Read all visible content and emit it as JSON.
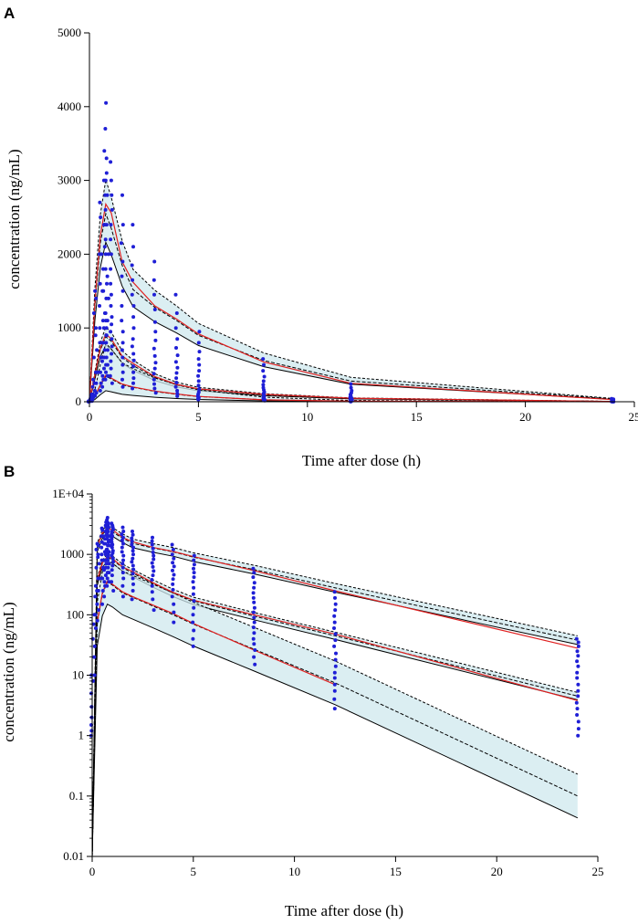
{
  "chart_data": [
    {
      "panel_label": "A",
      "type": "scatter",
      "scale": "linear",
      "xlabel": "Time after dose (h)",
      "ylabel": "concentration (ng/mL)",
      "xlim": [
        0,
        25
      ],
      "ylim": [
        0,
        5000
      ],
      "x_ticks": [
        0,
        5,
        10,
        15,
        20,
        25
      ],
      "x_tick_labels": [
        "0",
        "5",
        "10",
        "15",
        "20",
        "25"
      ],
      "y_ticks": [
        0,
        1000,
        2000,
        3000,
        4000,
        5000
      ],
      "y_tick_labels": [
        "0",
        "1000",
        "2000",
        "3000",
        "4000",
        "5000"
      ],
      "colors": {
        "points": "#1f1fd6",
        "observed_lines": "#e02020",
        "predicted_lines": "#000000",
        "band": "#cfe8ee"
      }
    },
    {
      "panel_label": "B",
      "type": "scatter",
      "scale": "log",
      "xlabel": "Time after dose (h)",
      "ylabel": "concentration (ng/mL)",
      "xlim": [
        0,
        25
      ],
      "ylim": [
        0.01,
        10000
      ],
      "x_ticks": [
        0,
        5,
        10,
        15,
        20,
        25
      ],
      "x_tick_labels": [
        "0",
        "5",
        "10",
        "15",
        "20",
        "25"
      ],
      "y_ticks": [
        0.01,
        0.1,
        1,
        10,
        100,
        1000,
        10000
      ],
      "y_tick_labels": [
        "0.01",
        "0.1",
        "1",
        "10",
        "100",
        "1000",
        "1E+04"
      ],
      "colors": {
        "points": "#1f1fd6",
        "observed_lines": "#e02020",
        "predicted_lines": "#000000",
        "band": "#cfe8ee"
      }
    }
  ],
  "model": {
    "times": [
      0,
      0.25,
      0.5,
      0.75,
      1,
      1.5,
      2,
      3,
      4,
      5,
      8,
      12,
      24
    ],
    "percentiles": [
      {
        "name": "95th",
        "pred": [
          0,
          1300,
          2150,
          2550,
          2350,
          1850,
          1520,
          1280,
          1100,
          900,
          560,
          280,
          38
        ],
        "band_factor": 1.18,
        "obs": [
          0,
          1350,
          2250,
          2680,
          2560,
          1900,
          1620,
          1300,
          1120,
          920,
          540,
          250,
          28
        ]
      },
      {
        "name": "50th",
        "pred": [
          0,
          350,
          700,
          880,
          820,
          600,
          490,
          330,
          230,
          170,
          95,
          45,
          4.5
        ],
        "band_factor": 1.15,
        "obs": [
          0,
          370,
          720,
          920,
          850,
          620,
          520,
          340,
          235,
          175,
          100,
          48,
          3.8
        ]
      },
      {
        "name": "5th",
        "pred": [
          0,
          70,
          220,
          345,
          310,
          230,
          195,
          140,
          100,
          70,
          27,
          7.5,
          0.1
        ],
        "band_factor": 2.3,
        "obs": [
          0,
          75,
          230,
          360,
          320,
          240,
          200,
          145,
          105,
          72,
          26,
          7.0,
          0.0
        ]
      }
    ]
  },
  "observations": [
    {
      "time": 0,
      "values": [
        1,
        1.2,
        1.5,
        2,
        3,
        5,
        8,
        10
      ]
    },
    {
      "time": 0.08,
      "values": [
        10,
        20,
        40,
        70,
        100
      ]
    },
    {
      "time": 0.17,
      "values": [
        30,
        60,
        100,
        200,
        300
      ]
    },
    {
      "time": 0.25,
      "values": [
        80,
        150,
        250,
        400,
        600,
        900,
        1200,
        1500
      ]
    },
    {
      "time": 0.33,
      "values": [
        120,
        250,
        400,
        700,
        1000,
        1400
      ]
    },
    {
      "time": 0.5,
      "values": [
        150,
        250,
        400,
        600,
        800,
        1000,
        1300,
        1600,
        2000,
        2500,
        2700
      ]
    },
    {
      "time": 0.58,
      "values": [
        200,
        350,
        550,
        800,
        1100,
        1500,
        2000
      ]
    },
    {
      "time": 0.67,
      "values": [
        300,
        450,
        600,
        800,
        1000,
        1200,
        1500,
        1800,
        2100,
        2400,
        3000,
        3400
      ]
    },
    {
      "time": 0.75,
      "values": [
        300,
        400,
        500,
        600,
        700,
        800,
        900,
        1000,
        1100,
        1200,
        1400,
        1600,
        1800,
        2000,
        2200,
        2400,
        2600,
        2800,
        3000,
        3300,
        3700,
        4050
      ]
    },
    {
      "time": 0.83,
      "values": [
        350,
        500,
        700,
        900,
        1100,
        1400,
        1700,
        2000,
        2400,
        2800,
        3100
      ]
    },
    {
      "time": 1,
      "values": [
        250,
        350,
        450,
        550,
        650,
        750,
        850,
        950,
        1050,
        1150,
        1300,
        1450,
        1600,
        1800,
        2000,
        2200,
        2400,
        2600,
        2800,
        3000,
        3250
      ]
    },
    {
      "time": 1.5,
      "values": [
        200,
        300,
        400,
        500,
        600,
        700,
        800,
        950,
        1100,
        1300,
        1500,
        1700,
        1900,
        2150,
        2400,
        2800
      ]
    },
    {
      "time": 2,
      "values": [
        180,
        250,
        320,
        400,
        480,
        560,
        650,
        750,
        850,
        1000,
        1150,
        1300,
        1450,
        1650,
        1850,
        2100,
        2400
      ]
    },
    {
      "time": 3,
      "values": [
        120,
        180,
        240,
        300,
        380,
        450,
        530,
        620,
        720,
        830,
        950,
        1080,
        1250,
        1450,
        1650,
        1900
      ]
    },
    {
      "time": 4,
      "values": [
        75,
        110,
        150,
        200,
        260,
        320,
        390,
        460,
        540,
        630,
        730,
        850,
        1000,
        1200,
        1450
      ]
    },
    {
      "time": 5,
      "values": [
        30,
        40,
        55,
        75,
        100,
        130,
        170,
        220,
        280,
        350,
        420,
        500,
        580,
        680,
        800,
        950
      ]
    },
    {
      "time": 8,
      "values": [
        15,
        20,
        26,
        33,
        40,
        50,
        62,
        75,
        90,
        110,
        130,
        160,
        190,
        230,
        280,
        340,
        420,
        500,
        580
      ]
    },
    {
      "time": 12,
      "values": [
        2.8,
        4,
        5.5,
        7,
        9,
        11,
        14,
        18,
        23,
        30,
        38,
        48,
        60,
        75,
        95,
        120,
        150,
        190,
        240
      ]
    },
    {
      "time": 24,
      "values": [
        1,
        1.3,
        1.7,
        2.2,
        2.8,
        3.5,
        4.5,
        5.5,
        7,
        9,
        11,
        14,
        17,
        21,
        25,
        30,
        35,
        40
      ]
    }
  ]
}
